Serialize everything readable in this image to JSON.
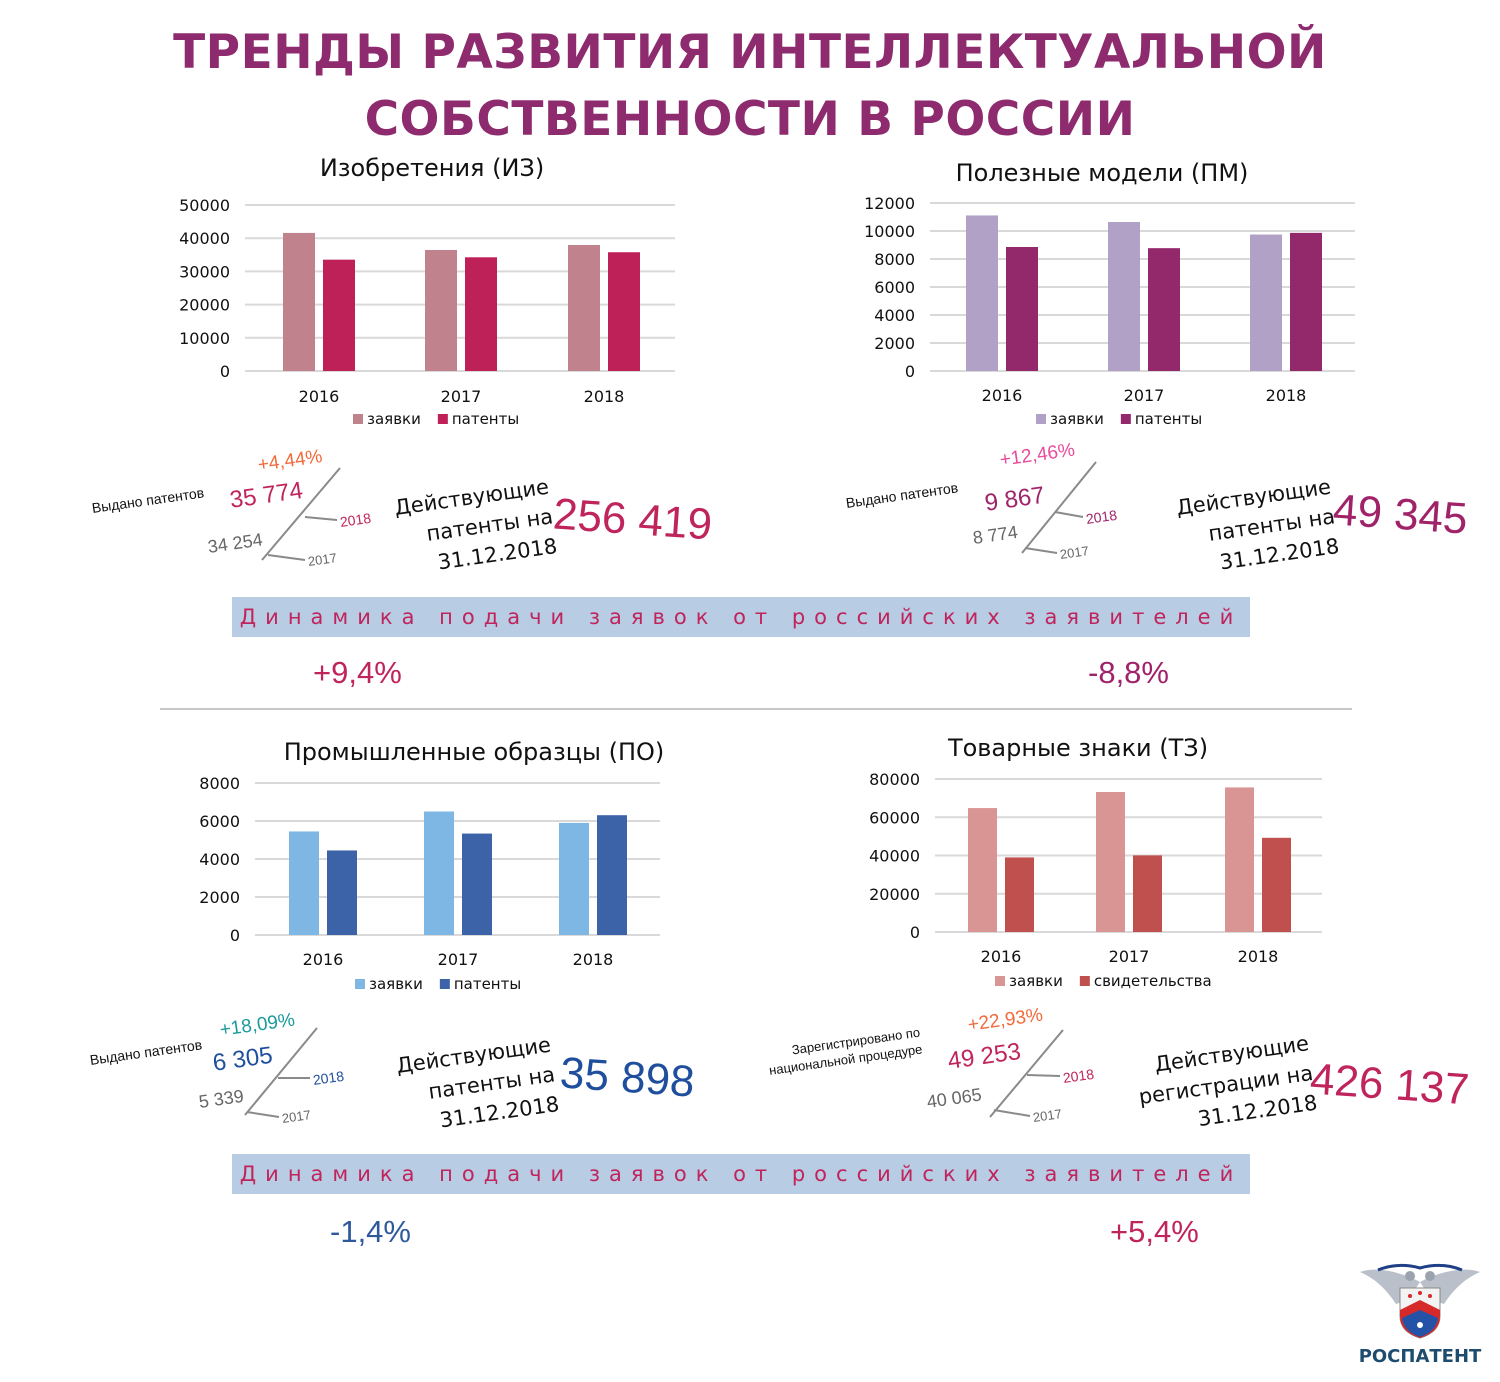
{
  "title": {
    "line1": "ТРЕНДЫ РАЗВИТИЯ ИНТЕЛЛЕКТУАЛЬНОЙ",
    "line2": "СОБСТВЕННОСТИ В РОССИИ"
  },
  "chart_data": [
    {
      "type": "bar",
      "title": "Изобретения (ИЗ)",
      "categories": [
        "2016",
        "2017",
        "2018"
      ],
      "series": [
        {
          "name": "заявки",
          "values": [
            41587,
            36454,
            37957
          ],
          "color": "#c0828c"
        },
        {
          "name": "патенты",
          "values": [
            33536,
            34254,
            35774
          ],
          "color": "#be2158"
        }
      ],
      "ylim": [
        0,
        50000
      ],
      "yticks": [
        "0",
        "10000",
        "20000",
        "30000",
        "40000",
        "50000"
      ],
      "grid": true,
      "legend": "bottom"
    },
    {
      "type": "bar",
      "title": "Полезные модели (ПМ)",
      "categories": [
        "2016",
        "2017",
        "2018"
      ],
      "series": [
        {
          "name": "заявки",
          "values": [
            11112,
            10643,
            9747
          ],
          "color": "#b1a1c7"
        },
        {
          "name": "патенты",
          "values": [
            8857,
            8774,
            9867
          ],
          "color": "#93286a"
        }
      ],
      "ylim": [
        0,
        12000
      ],
      "yticks": [
        "0",
        "2000",
        "4000",
        "6000",
        "8000",
        "10000",
        "12000"
      ],
      "grid": true,
      "legend": "bottom"
    },
    {
      "type": "bar",
      "title": "Промышленные образцы (ПО)",
      "categories": [
        "2016",
        "2017",
        "2018"
      ],
      "series": [
        {
          "name": "заявки",
          "values": [
            5450,
            6500,
            5900
          ],
          "color": "#7eb6e4"
        },
        {
          "name": "патенты",
          "values": [
            4450,
            5339,
            6305
          ],
          "color": "#3c63a8"
        }
      ],
      "ylim": [
        0,
        8000
      ],
      "yticks": [
        "0",
        "2000",
        "4000",
        "6000",
        "8000"
      ],
      "grid": true,
      "legend": "bottom"
    },
    {
      "type": "bar",
      "title": "Товарные знаки (ТЗ)",
      "categories": [
        "2016",
        "2017",
        "2018"
      ],
      "series": [
        {
          "name": "заявки",
          "values": [
            64800,
            73200,
            75600
          ],
          "color": "#d99594"
        },
        {
          "name": "свидетельства",
          "values": [
            39000,
            40065,
            49253
          ],
          "color": "#c0504d"
        }
      ],
      "ylim": [
        0,
        80000
      ],
      "yticks": [
        "0",
        "20000",
        "40000",
        "60000",
        "80000"
      ],
      "grid": true,
      "legend": "bottom"
    }
  ],
  "stats": [
    {
      "label": "Выдано патентов",
      "change": "+4,44%",
      "change_color": "#f26a3a",
      "current": "35 774",
      "current_color": "#c0245c",
      "prev": "34 254",
      "year_current": "2018",
      "year_prev": "2017",
      "active_label": "Действующие\nпатенты на\n31.12.2018",
      "active_value": "256 419",
      "active_color": "#c0245c"
    },
    {
      "label": "Выдано патентов",
      "change": "+12,46%",
      "change_color": "#e84b9a",
      "current": "9 867",
      "current_color": "#a0236a",
      "prev": "8 774",
      "year_current": "2018",
      "year_prev": "2017",
      "active_label": "Действующие\nпатенты на\n31.12.2018",
      "active_value": "49 345",
      "active_color": "#a0236a"
    },
    {
      "label": "Выдано патентов",
      "change": "+18,09%",
      "change_color": "#1a9a9a",
      "current": "6 305",
      "current_color": "#1f4f9c",
      "prev": "5 339",
      "year_current": "2018",
      "year_prev": "2017",
      "active_label": "Действующие\nпатенты на\n31.12.2018",
      "active_value": "35 898",
      "active_color": "#1f4f9c"
    },
    {
      "label": "Зарегистрировано по\nнациональной процедуре",
      "change": "+22,93%",
      "change_color": "#f26a3a",
      "current": "49 253",
      "current_color": "#c0245c",
      "prev": "40 065",
      "year_current": "2018",
      "year_prev": "2017",
      "active_label": "Действующие\nрегистрации на\n31.12.2018",
      "active_value": "426 137",
      "active_color": "#c0245c"
    }
  ],
  "bands": [
    {
      "text": "Динамика подачи заявок от российских заявителей",
      "left": "+9,4%",
      "left_color": "#c0245c",
      "right": "-8,8%",
      "right_color": "#a0236a"
    },
    {
      "text": "Динамика подачи заявок от российских заявителей",
      "left": "-1,4%",
      "left_color": "#2e5a9c",
      "right": "+5,4%",
      "right_color": "#c0245c"
    }
  ],
  "logo": {
    "text": "РОСПАТЕНТ",
    "icon": "double-headed-eagle-emblem"
  }
}
